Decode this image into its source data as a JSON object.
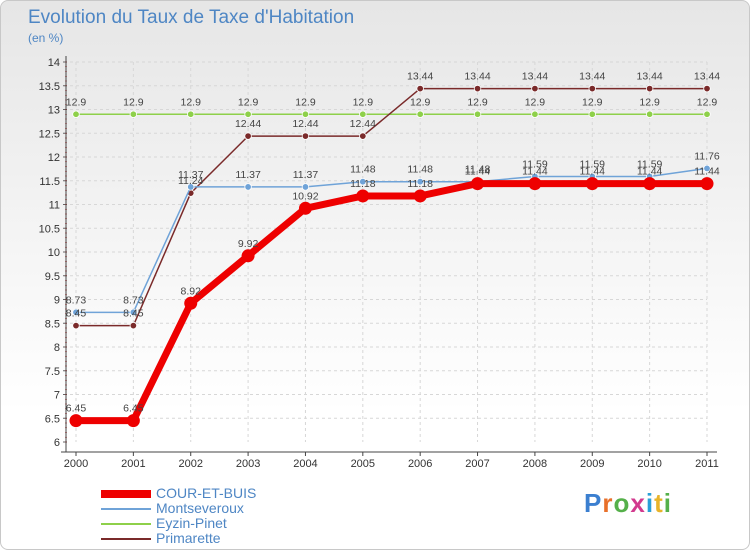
{
  "title": "Evolution du Taux de Taxe d'Habitation",
  "subtitle": "(en %)",
  "brand": {
    "text": "Proxiti",
    "letter_colors": [
      "#3b7fd0",
      "#e8702a",
      "#55b04a",
      "#d23a8e",
      "#2aa0d8",
      "#e8b42a",
      "#55b04a"
    ]
  },
  "chart_data": {
    "type": "line",
    "title": "Evolution du Taux de Taxe d'Habitation",
    "ylabel": "(en %)",
    "xlabel": "",
    "categories": [
      "2000",
      "2001",
      "2002",
      "2003",
      "2004",
      "2005",
      "2006",
      "2007",
      "2008",
      "2009",
      "2010",
      "2011"
    ],
    "ylim": [
      6,
      14
    ],
    "yticks": [
      "6",
      "6.5",
      "7",
      "7.5",
      "8",
      "8.5",
      "9",
      "9.5",
      "10",
      "10.5",
      "11",
      "11.5",
      "12",
      "12.5",
      "13",
      "13.5",
      "14"
    ],
    "series": [
      {
        "name": "Eyzin-Pinet",
        "color": "#8ed04a",
        "values": [
          12.9,
          12.9,
          12.9,
          12.9,
          12.9,
          12.9,
          12.9,
          12.9,
          12.9,
          12.9,
          12.9,
          12.9
        ],
        "labels": [
          "12.9",
          "12.9",
          "12.9",
          "12.9",
          "12.9",
          "12.9",
          "12.9",
          "12.9",
          "12.9",
          "12.9",
          "12.9",
          "12.9"
        ]
      },
      {
        "name": "Primarette",
        "color": "#7a2a2a",
        "values": [
          8.45,
          8.45,
          11.24,
          12.44,
          12.44,
          12.44,
          13.44,
          13.44,
          13.44,
          13.44,
          13.44,
          13.44
        ],
        "labels": [
          "8.45",
          "8.45",
          "11.24",
          "12.44",
          "12.44",
          "12.44",
          "13.44",
          "13.44",
          "13.44",
          "13.44",
          "13.44",
          "13.44"
        ]
      },
      {
        "name": "Montseveroux",
        "color": "#6fa3d8",
        "values": [
          8.73,
          8.73,
          11.37,
          11.37,
          11.37,
          11.48,
          11.48,
          11.48,
          11.59,
          11.59,
          11.59,
          11.76
        ],
        "labels": [
          "8.73",
          "8.73",
          "11.37",
          "11.37",
          "11.37",
          "11.48",
          "11.48",
          "11.48",
          "11.59",
          "11.59",
          "11.59",
          "11.76"
        ]
      },
      {
        "name": "COUR-ET-BUIS",
        "color": "#ee0000",
        "values": [
          6.45,
          6.45,
          8.92,
          9.92,
          10.92,
          11.18,
          11.18,
          11.44,
          11.44,
          11.44,
          11.44,
          11.44
        ],
        "labels": [
          "6.45",
          "6.45",
          "8.92",
          "9.92",
          "10.92",
          "11.18",
          "11.18",
          "11.44",
          "11.44",
          "11.44",
          "11.44",
          "11.44"
        ]
      }
    ],
    "legend": [
      "COUR-ET-BUIS",
      "Montseveroux",
      "Eyzin-Pinet",
      "Primarette"
    ],
    "legend_position": "bottom-left"
  }
}
